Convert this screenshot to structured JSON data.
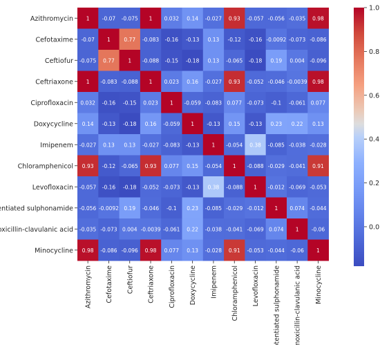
{
  "chart_data": {
    "type": "heatmap",
    "title": "",
    "xlabel": "",
    "ylabel": "",
    "rows": [
      "Azithromycin",
      "Cefotaxime",
      "Ceftiofur",
      "Ceftriaxone",
      "Ciprofloxacin",
      "Doxycycline",
      "Imipenem",
      "Chloramphenicol",
      "Levofloxacin",
      "Potentiated  sulphonamide",
      "Amoxicillin-clavulanic acid",
      "Minocycline"
    ],
    "columns": [
      "Azithromycin",
      "Cefotaxime",
      "Ceftiofur",
      "Ceftriaxone",
      "Ciprofloxacin",
      "Doxycycline",
      "Imipenem",
      "Chloramphenicol",
      "Levofloxacin",
      "Potentiated  sulphonamide",
      "Amoxicillin-clavulanic acid",
      "Minocycline"
    ],
    "values": [
      [
        1,
        -0.07,
        -0.075,
        1,
        0.032,
        0.14,
        -0.027,
        0.93,
        -0.057,
        -0.056,
        -0.035,
        0.98
      ],
      [
        -0.07,
        1,
        0.77,
        -0.083,
        -0.16,
        -0.13,
        0.13,
        -0.12,
        -0.16,
        -0.0092,
        -0.073,
        -0.086
      ],
      [
        -0.075,
        0.77,
        1,
        -0.088,
        -0.15,
        -0.18,
        0.13,
        -0.065,
        -0.18,
        0.19,
        0.004,
        -0.096
      ],
      [
        1,
        -0.083,
        -0.088,
        1,
        0.023,
        0.16,
        -0.027,
        0.93,
        -0.052,
        -0.046,
        -0.0039,
        0.98
      ],
      [
        0.032,
        -0.16,
        -0.15,
        0.023,
        1,
        -0.059,
        -0.083,
        0.077,
        -0.073,
        -0.1,
        -0.061,
        0.077
      ],
      [
        0.14,
        -0.13,
        -0.18,
        0.16,
        -0.059,
        1,
        -0.13,
        0.15,
        -0.13,
        0.23,
        0.22,
        0.13
      ],
      [
        -0.027,
        0.13,
        0.13,
        -0.027,
        -0.083,
        -0.13,
        1,
        -0.054,
        0.38,
        -0.085,
        -0.038,
        -0.028
      ],
      [
        0.93,
        -0.12,
        -0.065,
        0.93,
        0.077,
        0.15,
        -0.054,
        1,
        -0.088,
        -0.029,
        -0.041,
        0.91
      ],
      [
        -0.057,
        -0.16,
        -0.18,
        -0.052,
        -0.073,
        -0.13,
        0.38,
        -0.088,
        1,
        -0.012,
        -0.069,
        -0.053
      ],
      [
        -0.056,
        -0.0092,
        0.19,
        -0.046,
        -0.1,
        0.23,
        -0.085,
        -0.029,
        -0.012,
        1,
        0.074,
        -0.044
      ],
      [
        -0.035,
        -0.073,
        0.004,
        -0.0039,
        -0.061,
        0.22,
        -0.038,
        -0.041,
        -0.069,
        0.074,
        1,
        -0.06
      ],
      [
        0.98,
        -0.086,
        -0.096,
        0.98,
        0.077,
        0.13,
        -0.028,
        0.91,
        -0.053,
        -0.044,
        -0.06,
        1
      ]
    ],
    "vmin": -0.18,
    "vmax": 1,
    "colormap": "coolwarm",
    "colorbar_ticks": [
      "1.0",
      "0.8",
      "0.6",
      "0.4",
      "0.2",
      "0.0"
    ],
    "colorbar_tick_values": [
      1.0,
      0.8,
      0.6,
      0.4,
      0.2,
      0.0
    ],
    "grid": false,
    "legend": "colorbar-right"
  }
}
